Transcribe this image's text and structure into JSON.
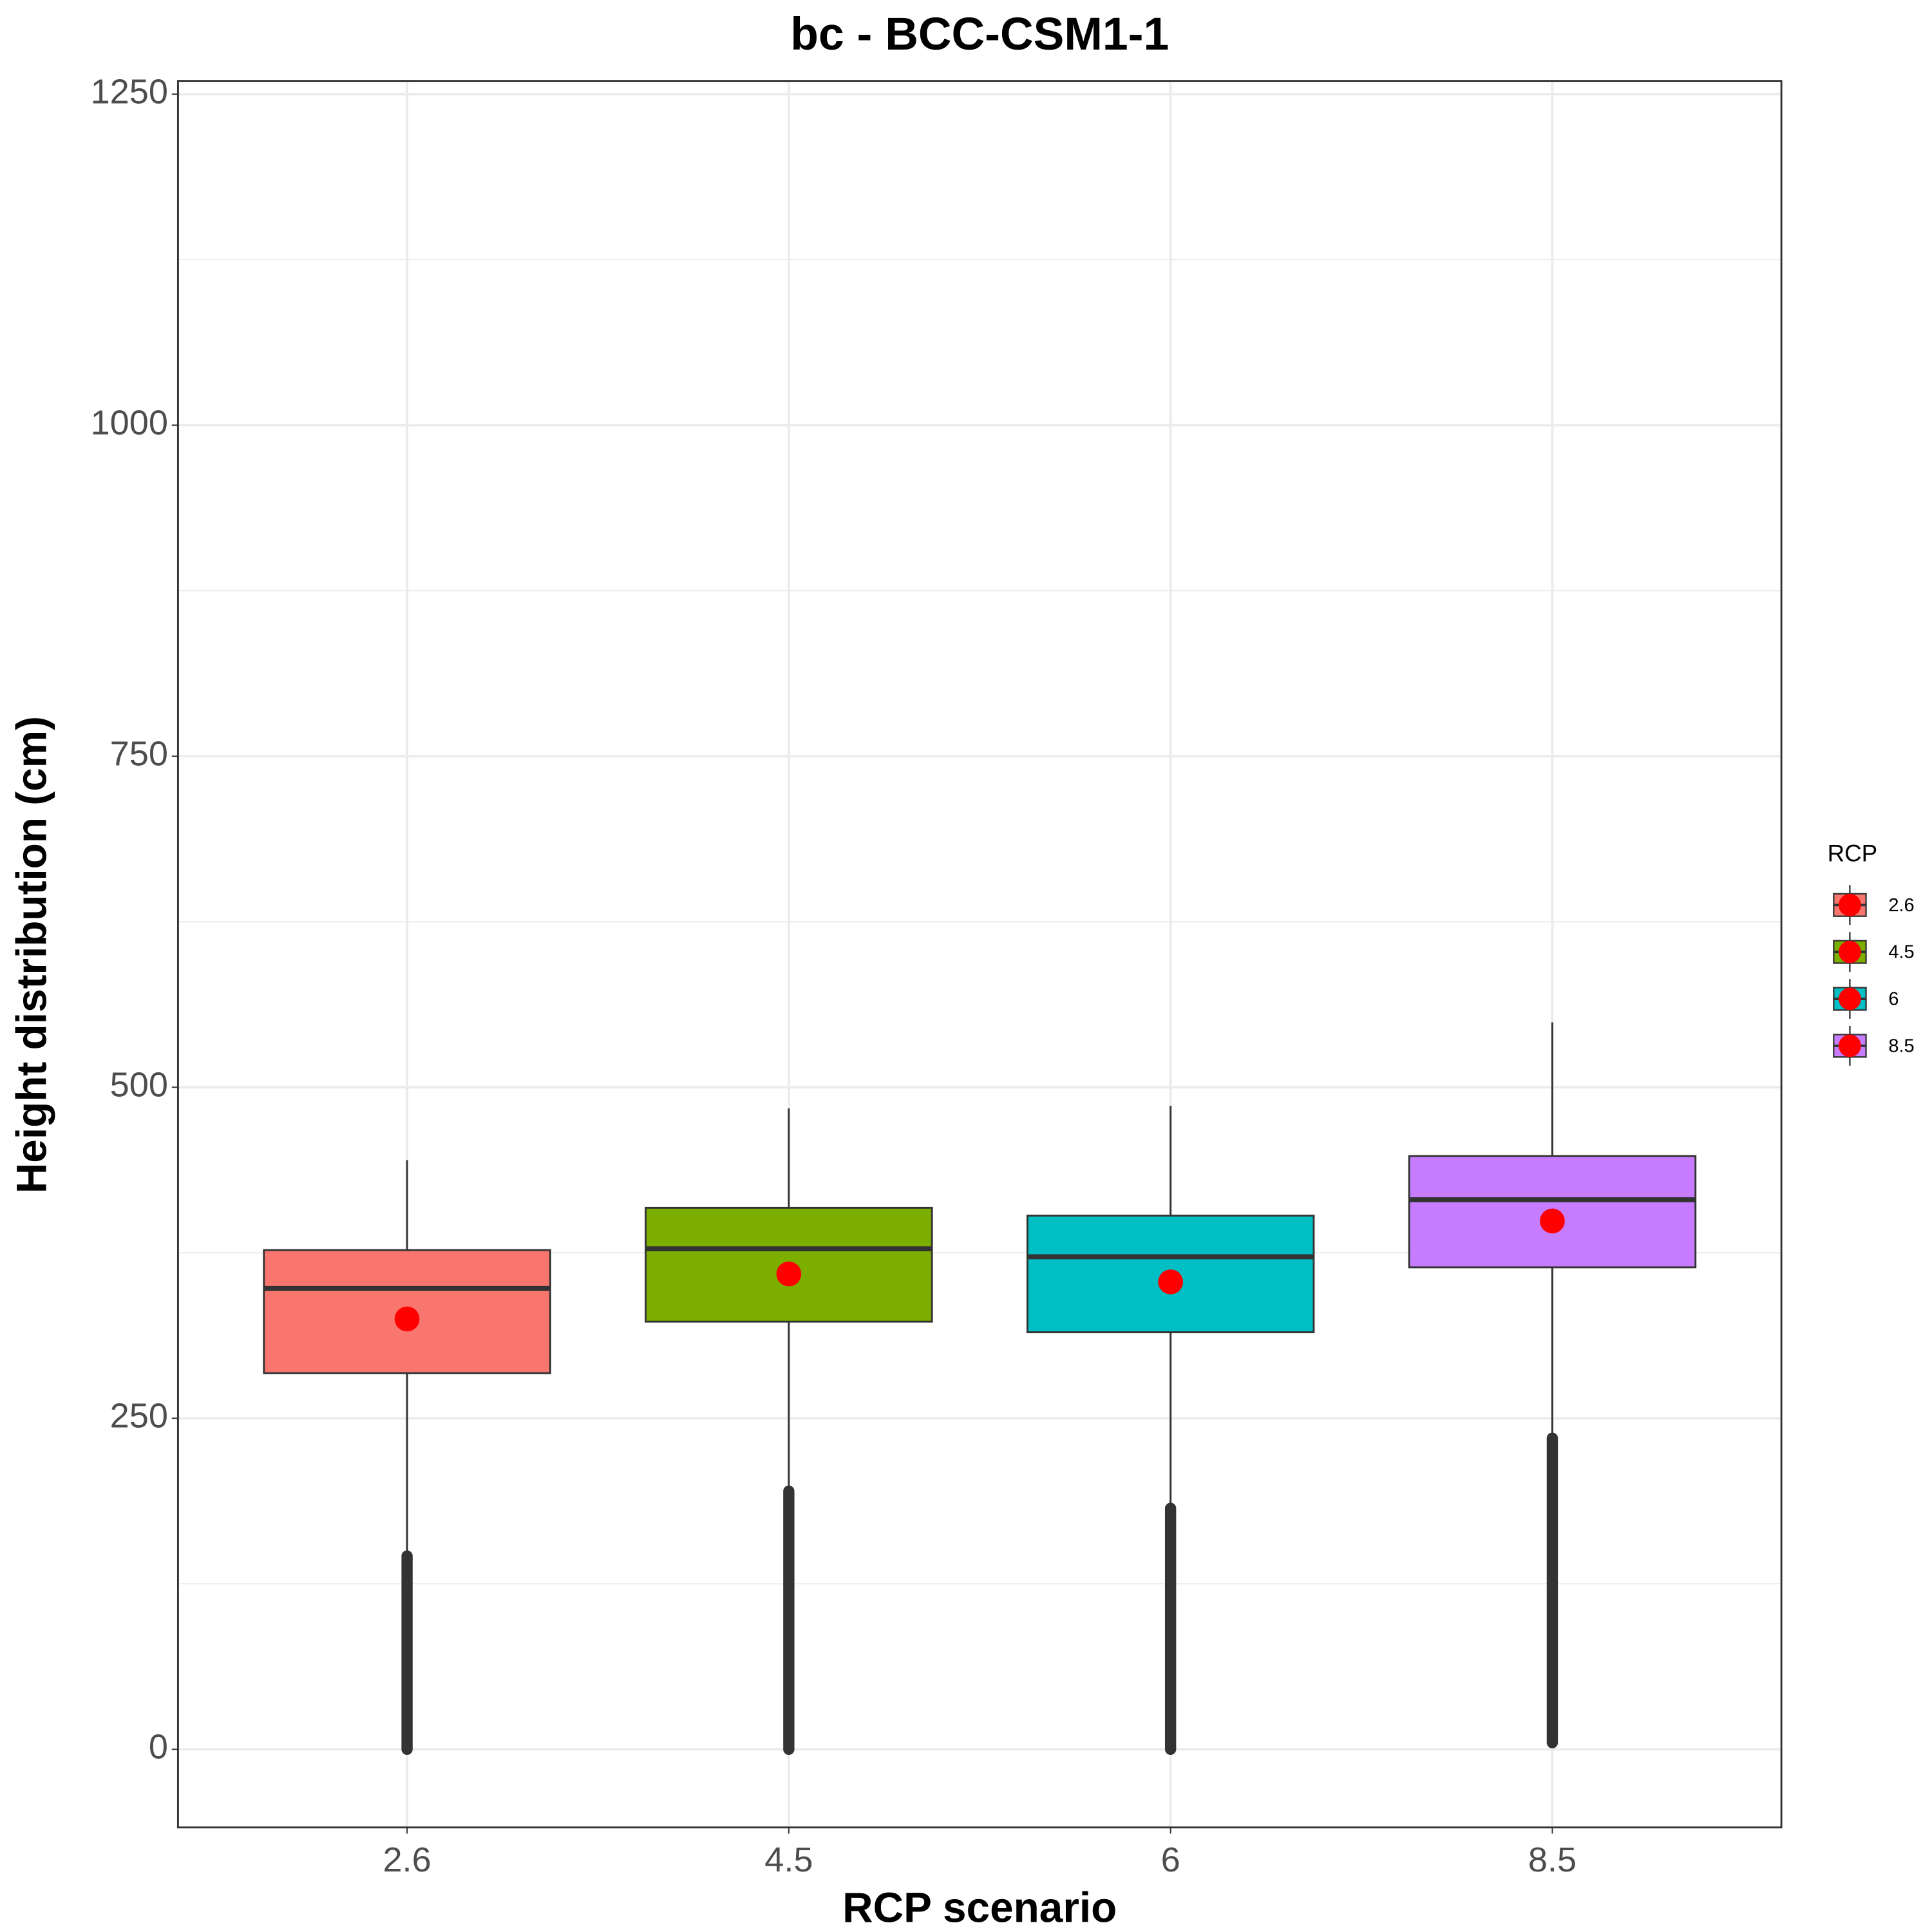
{
  "chart_data": {
    "type": "boxplot",
    "title": "bc - BCC-CSM1-1",
    "x_label": "RCP scenario",
    "y_label": "Height distribution (cm)",
    "legend_title": "RCP",
    "categories": [
      "2.6",
      "4.5",
      "6",
      "8.5"
    ],
    "colors": [
      "#F8766D",
      "#7CAE00",
      "#00BFC4",
      "#C77CFF"
    ],
    "mean_color": "#FF0000",
    "boxes": [
      {
        "whislo": 150,
        "q1": 284,
        "median": 348,
        "q3": 377,
        "whishi": 445,
        "mean": 325,
        "outlier_min": 0,
        "outlier_max": 146
      },
      {
        "whislo": 198,
        "q1": 323,
        "median": 378,
        "q3": 409,
        "whishi": 484,
        "mean": 359,
        "outlier_min": 0,
        "outlier_max": 195
      },
      {
        "whislo": 185,
        "q1": 315,
        "median": 372,
        "q3": 403,
        "whishi": 486,
        "mean": 353,
        "outlier_min": 0,
        "outlier_max": 182
      },
      {
        "whislo": 238,
        "q1": 364,
        "median": 415,
        "q3": 448,
        "whishi": 549,
        "mean": 399,
        "outlier_min": 5,
        "outlier_max": 235
      }
    ],
    "ylim": [
      -59,
      1260
    ],
    "yticks": [
      0,
      250,
      500,
      750,
      1000,
      1250
    ],
    "minor_yticks": [
      125,
      375,
      625,
      875,
      1125
    ],
    "grid": true,
    "legend_position": "right"
  }
}
